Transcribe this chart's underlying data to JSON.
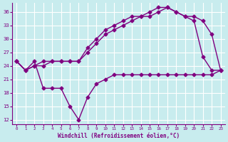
{
  "xlabel": "Windchill (Refroidissement éolien,°C)",
  "bg_color": "#c8ecee",
  "line_color": "#800080",
  "grid_color": "#ffffff",
  "xlim": [
    -0.5,
    23.5
  ],
  "ylim": [
    11,
    38
  ],
  "xticks": [
    0,
    1,
    2,
    3,
    4,
    5,
    6,
    7,
    8,
    9,
    10,
    11,
    12,
    13,
    14,
    15,
    16,
    17,
    18,
    19,
    20,
    21,
    22,
    23
  ],
  "yticks": [
    12,
    15,
    18,
    21,
    24,
    27,
    30,
    33,
    36
  ],
  "line1_x": [
    0,
    1,
    2,
    3,
    4,
    5,
    6,
    7,
    8,
    9,
    10,
    11,
    12,
    13,
    14,
    15,
    16,
    17,
    18,
    19,
    20,
    21,
    22,
    23
  ],
  "line1_y": [
    25,
    23,
    24,
    24,
    25,
    25,
    25,
    25,
    27,
    29,
    31,
    32,
    33,
    34,
    35,
    35,
    36,
    37,
    36,
    35,
    34,
    26,
    23,
    23
  ],
  "line2_x": [
    0,
    1,
    2,
    3,
    4,
    5,
    6,
    7,
    8,
    9,
    10,
    11,
    12,
    13,
    14,
    15,
    16,
    17,
    18,
    19,
    20,
    21,
    22,
    23
  ],
  "line2_y": [
    25,
    23,
    24,
    25,
    25,
    25,
    25,
    25,
    28,
    30,
    32,
    33,
    34,
    35,
    35,
    36,
    37,
    37,
    36,
    35,
    35,
    34,
    31,
    23
  ],
  "line3_x": [
    0,
    1,
    2,
    3,
    4,
    5,
    6,
    7,
    8,
    9,
    10,
    11,
    12,
    13,
    14,
    15,
    16,
    17,
    18,
    19,
    20,
    21,
    22,
    23
  ],
  "line3_y": [
    25,
    23,
    25,
    19,
    19,
    19,
    15,
    12,
    17,
    20,
    21,
    22,
    22,
    22,
    22,
    22,
    22,
    22,
    22,
    22,
    22,
    22,
    22,
    23
  ],
  "marker": "D",
  "markersize": 2.5,
  "linewidth": 1.0
}
